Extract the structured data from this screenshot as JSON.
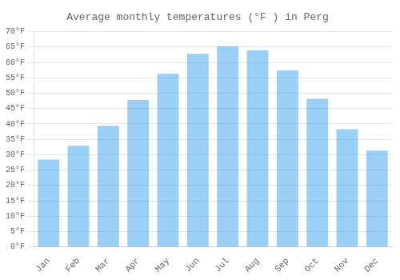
{
  "chart_data": {
    "type": "bar",
    "title": "Average monthly temperatures (°F ) in Perg",
    "categories": [
      "Jan",
      "Feb",
      "Mar",
      "Apr",
      "May",
      "Jun",
      "Jul",
      "Aug",
      "Sep",
      "Oct",
      "Nov",
      "Dec"
    ],
    "values": [
      28.4,
      32.9,
      39.4,
      47.8,
      56.3,
      62.8,
      65.3,
      64.0,
      57.4,
      48.2,
      38.3,
      31.3
    ],
    "ylim": [
      0,
      70
    ],
    "yticks": [
      {
        "value": 0,
        "label": "0°F"
      },
      {
        "value": 5,
        "label": "5°F"
      },
      {
        "value": 10,
        "label": "10°F"
      },
      {
        "value": 15,
        "label": "15°F"
      },
      {
        "value": 20,
        "label": "20°F"
      },
      {
        "value": 25,
        "label": "25°F"
      },
      {
        "value": 30,
        "label": "30°F"
      },
      {
        "value": 35,
        "label": "35°F"
      },
      {
        "value": 40,
        "label": "40°F"
      },
      {
        "value": 45,
        "label": "45°F"
      },
      {
        "value": 50,
        "label": "50°F"
      },
      {
        "value": 55,
        "label": "55°F"
      },
      {
        "value": 60,
        "label": "60°F"
      },
      {
        "value": 65,
        "label": "65°F"
      },
      {
        "value": 70,
        "label": "70°F"
      }
    ],
    "grid": true
  }
}
